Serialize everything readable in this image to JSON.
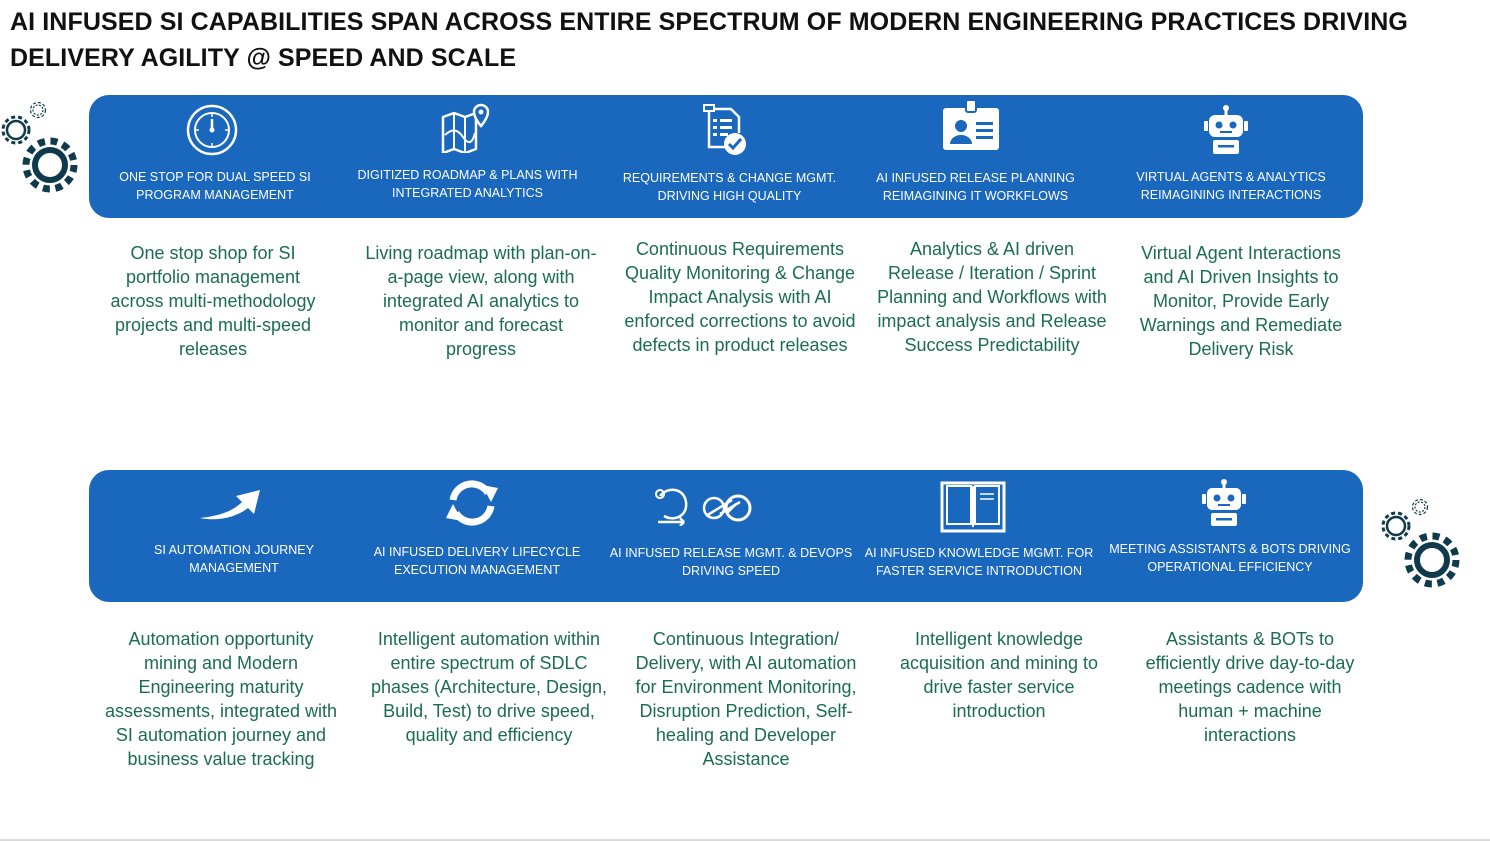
{
  "title": "AI INFUSED SI CAPABILITIES SPAN ACROSS ENTIRE SPECTRUM OF MODERN ENGINEERING PRACTICES DRIVING DELIVERY AGILITY @ SPEED AND SCALE",
  "colors": {
    "band": "#1a67be",
    "description_text": "#1a6e4e",
    "gear": "#0e3a4b",
    "title_text": "#111111"
  },
  "top_row": [
    {
      "icon": "gauge-icon",
      "caption": "ONE STOP FOR DUAL SPEED SI PROGRAM MANAGEMENT",
      "description": "One stop shop for SI portfolio management across multi-methodology projects and multi-speed releases"
    },
    {
      "icon": "roadmap-map-icon",
      "caption": "DIGITIZED ROADMAP & PLANS WITH INTEGRATED ANALYTICS",
      "description": "Living roadmap with plan-on-a-page view, along with integrated AI analytics to monitor and forecast progress"
    },
    {
      "icon": "checklist-icon",
      "caption": "REQUIREMENTS & CHANGE MGMT. DRIVING HIGH QUALITY",
      "description": "Continuous Requirements Quality Monitoring & Change Impact Analysis with AI enforced corrections to avoid defects in product releases"
    },
    {
      "icon": "id-badge-icon",
      "caption": "AI INFUSED RELEASE PLANNING REIMAGINING IT WORKFLOWS",
      "description": "Analytics & AI driven Release / Iteration / Sprint Planning and Workflows with impact analysis and Release Success Predictability"
    },
    {
      "icon": "robot-icon",
      "caption": "VIRTUAL AGENTS & ANALYTICS REIMAGINING INTERACTIONS",
      "description": "Virtual Agent Interactions and AI Driven Insights to Monitor, Provide Early Warnings and Remediate Delivery Risk"
    }
  ],
  "bottom_row": [
    {
      "icon": "arrow-icon",
      "caption": "SI AUTOMATION JOURNEY MANAGEMENT",
      "description": "Automation opportunity mining and Modern Engineering maturity assessments, integrated with SI automation journey and business value tracking"
    },
    {
      "icon": "refresh-cycle-icon",
      "caption": "AI INFUSED DELIVERY LIFECYCLE EXECUTION MANAGEMENT",
      "description": "Intelligent automation within entire spectrum of SDLC phases (Architecture, Design, Build, Test) to drive speed, quality and efficiency"
    },
    {
      "icon": "devops-loop-icon",
      "caption": "AI INFUSED RELEASE MGMT. & DEVOPS DRIVING SPEED",
      "description": "Continuous Integration/ Delivery, with AI automation for Environment Monitoring, Disruption Prediction, Self-healing and Developer Assistance"
    },
    {
      "icon": "book-icon",
      "caption": "AI INFUSED KNOWLEDGE MGMT. FOR FASTER SERVICE INTRODUCTION",
      "description": "Intelligent knowledge acquisition and mining to drive faster service introduction"
    },
    {
      "icon": "bot-icon",
      "caption": "MEETING ASSISTANTS & BOTs DRIVING OPERATIONAL EFFICIENCY",
      "description": "Assistants & BOTs to efficiently drive day-to-day meetings cadence with human + machine interactions"
    }
  ]
}
